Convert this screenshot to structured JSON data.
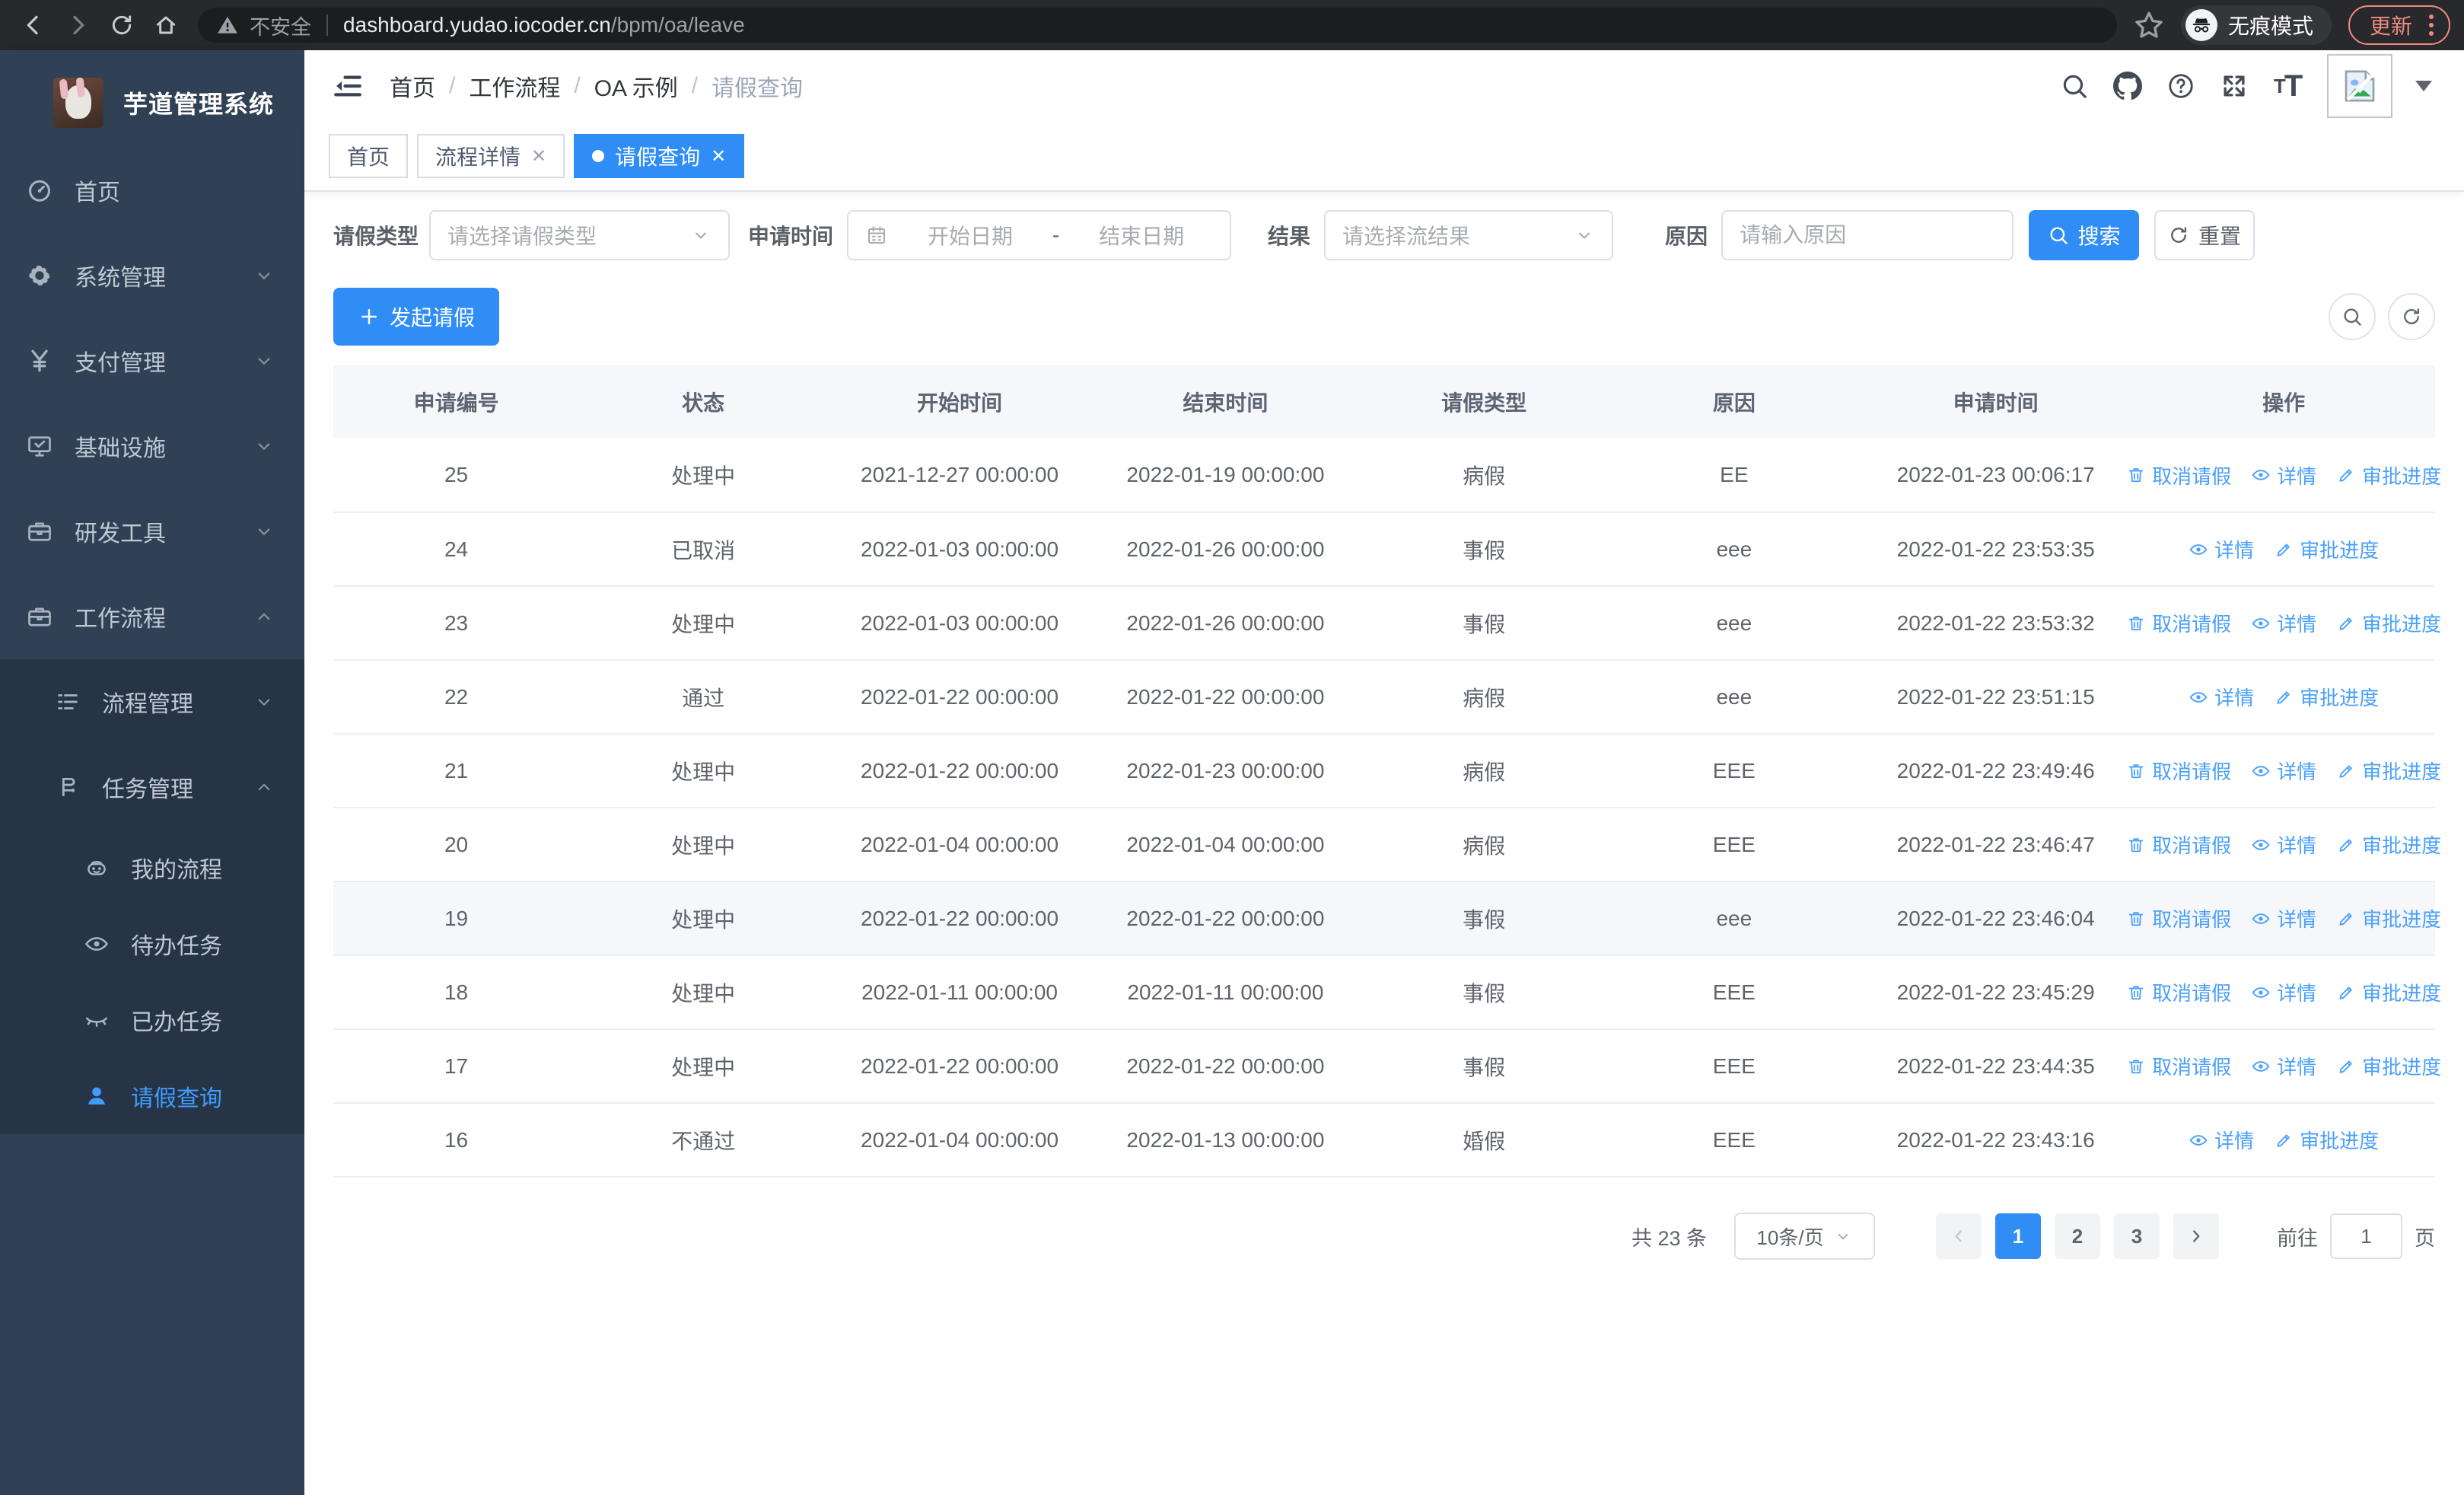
{
  "browser": {
    "security_chip": "不安全",
    "url_host": "dashboard.yudao.iocoder.cn",
    "url_path": "/bpm/oa/leave",
    "incognito_label": "无痕模式",
    "update_label": "更新"
  },
  "sidebar": {
    "title": "芋道管理系统",
    "menu": [
      {
        "label": "首页",
        "icon": "dashboard-icon",
        "level": 1,
        "section": "top"
      },
      {
        "label": "系统管理",
        "icon": "gear-icon",
        "level": 1,
        "chevron": "down",
        "section": "top"
      },
      {
        "label": "支付管理",
        "icon": "yen-icon",
        "level": 1,
        "chevron": "down",
        "section": "top"
      },
      {
        "label": "基础设施",
        "icon": "infra-icon",
        "level": 1,
        "chevron": "down",
        "section": "top"
      },
      {
        "label": "研发工具",
        "icon": "toolbox-icon",
        "level": 1,
        "chevron": "down",
        "section": "top"
      },
      {
        "label": "工作流程",
        "icon": "briefcase-icon",
        "level": 1,
        "chevron": "up",
        "section": "top"
      },
      {
        "label": "流程管理",
        "icon": "process-list-icon",
        "level": 2,
        "chevron": "down",
        "section": "expanded"
      },
      {
        "label": "任务管理",
        "icon": "task-flow-icon",
        "level": 2,
        "chevron": "up",
        "section": "expanded"
      },
      {
        "label": "我的流程",
        "icon": "robot-icon",
        "level": 3,
        "section": "expanded"
      },
      {
        "label": "待办任务",
        "icon": "eye-icon",
        "level": 3,
        "section": "expanded"
      },
      {
        "label": "已办任务",
        "icon": "eye-closed-icon",
        "level": 3,
        "section": "expanded"
      },
      {
        "label": "请假查询",
        "icon": "user-icon",
        "level": 3,
        "section": "expanded",
        "active": true
      }
    ]
  },
  "header": {
    "breadcrumb": [
      "首页",
      "工作流程",
      "OA 示例",
      "请假查询"
    ],
    "font_icon_text_small": "T",
    "font_icon_text_big": "T"
  },
  "tabs": [
    {
      "label": "首页",
      "closable": false,
      "active": false
    },
    {
      "label": "流程详情",
      "closable": true,
      "active": false
    },
    {
      "label": "请假查询",
      "closable": true,
      "active": true
    }
  ],
  "filters": {
    "type": {
      "label": "请假类型",
      "placeholder": "请选择请假类型"
    },
    "time": {
      "label": "申请时间",
      "start_placeholder": "开始日期",
      "separator": "-",
      "end_placeholder": "结束日期"
    },
    "result": {
      "label": "结果",
      "placeholder": "请选择流结果"
    },
    "reason": {
      "label": "原因",
      "placeholder": "请输入原因"
    },
    "search_label": "搜索",
    "reset_label": "重置"
  },
  "toolbar": {
    "create_label": "发起请假"
  },
  "table": {
    "headers": [
      "申请编号",
      "状态",
      "开始时间",
      "结束时间",
      "请假类型",
      "原因",
      "申请时间",
      "操作"
    ],
    "action_defs": {
      "cancel": {
        "label": "取消请假",
        "icon": "trash-icon"
      },
      "detail": {
        "label": "详情",
        "icon": "eye-icon"
      },
      "progress": {
        "label": "审批进度",
        "icon": "pen-icon"
      }
    },
    "rows": [
      {
        "id": "25",
        "status": "处理中",
        "start": "2021-12-27 00:00:00",
        "end": "2022-01-19 00:00:00",
        "type": "病假",
        "reason": "EE",
        "applied": "2022-01-23 00:06:17",
        "actions": [
          "cancel",
          "detail",
          "progress"
        ],
        "highlight": false
      },
      {
        "id": "24",
        "status": "已取消",
        "start": "2022-01-03 00:00:00",
        "end": "2022-01-26 00:00:00",
        "type": "事假",
        "reason": "eee",
        "applied": "2022-01-22 23:53:35",
        "actions": [
          "detail",
          "progress"
        ],
        "highlight": false
      },
      {
        "id": "23",
        "status": "处理中",
        "start": "2022-01-03 00:00:00",
        "end": "2022-01-26 00:00:00",
        "type": "事假",
        "reason": "eee",
        "applied": "2022-01-22 23:53:32",
        "actions": [
          "cancel",
          "detail",
          "progress"
        ],
        "highlight": false
      },
      {
        "id": "22",
        "status": "通过",
        "start": "2022-01-22 00:00:00",
        "end": "2022-01-22 00:00:00",
        "type": "病假",
        "reason": "eee",
        "applied": "2022-01-22 23:51:15",
        "actions": [
          "detail",
          "progress"
        ],
        "highlight": false
      },
      {
        "id": "21",
        "status": "处理中",
        "start": "2022-01-22 00:00:00",
        "end": "2022-01-23 00:00:00",
        "type": "病假",
        "reason": "EEE",
        "applied": "2022-01-22 23:49:46",
        "actions": [
          "cancel",
          "detail",
          "progress"
        ],
        "highlight": false
      },
      {
        "id": "20",
        "status": "处理中",
        "start": "2022-01-04 00:00:00",
        "end": "2022-01-04 00:00:00",
        "type": "病假",
        "reason": "EEE",
        "applied": "2022-01-22 23:46:47",
        "actions": [
          "cancel",
          "detail",
          "progress"
        ],
        "highlight": false
      },
      {
        "id": "19",
        "status": "处理中",
        "start": "2022-01-22 00:00:00",
        "end": "2022-01-22 00:00:00",
        "type": "事假",
        "reason": "eee",
        "applied": "2022-01-22 23:46:04",
        "actions": [
          "cancel",
          "detail",
          "progress"
        ],
        "highlight": true
      },
      {
        "id": "18",
        "status": "处理中",
        "start": "2022-01-11 00:00:00",
        "end": "2022-01-11 00:00:00",
        "type": "事假",
        "reason": "EEE",
        "applied": "2022-01-22 23:45:29",
        "actions": [
          "cancel",
          "detail",
          "progress"
        ],
        "highlight": false
      },
      {
        "id": "17",
        "status": "处理中",
        "start": "2022-01-22 00:00:00",
        "end": "2022-01-22 00:00:00",
        "type": "事假",
        "reason": "EEE",
        "applied": "2022-01-22 23:44:35",
        "actions": [
          "cancel",
          "detail",
          "progress"
        ],
        "highlight": false
      },
      {
        "id": "16",
        "status": "不通过",
        "start": "2022-01-04 00:00:00",
        "end": "2022-01-13 00:00:00",
        "type": "婚假",
        "reason": "EEE",
        "applied": "2022-01-22 23:43:16",
        "actions": [
          "detail",
          "progress"
        ],
        "highlight": false
      }
    ]
  },
  "pagination": {
    "total_label": "共 23 条",
    "per_page_label": "10条/页",
    "pages": [
      "1",
      "2",
      "3"
    ],
    "current_page": "1",
    "goto_prefix": "前往",
    "goto_value": "1",
    "goto_suffix": "页"
  },
  "colors": {
    "primary": "#2f8df5",
    "sidebar_bg": "#304156",
    "sidebar_sub_bg": "#263445",
    "link": "#4aa0fb"
  }
}
